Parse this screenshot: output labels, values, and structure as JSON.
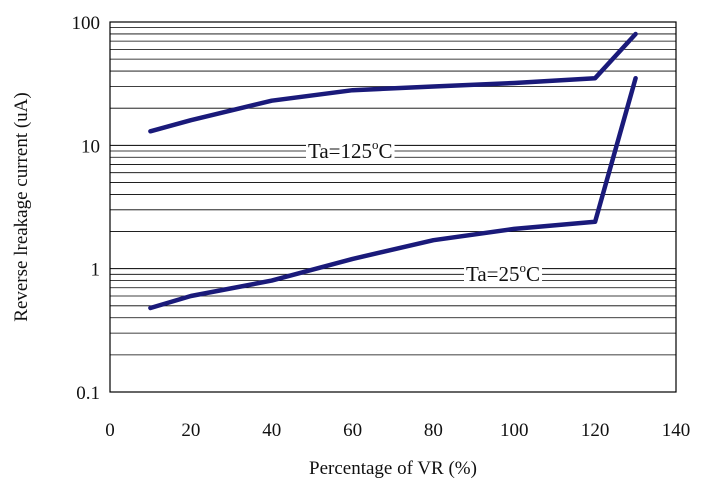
{
  "chart_data": {
    "type": "line",
    "title": "",
    "xlabel": "Percentage of VR (%)",
    "ylabel": "Reverse lreakage current (uA)",
    "xlim": [
      0,
      140
    ],
    "ylim": [
      0.1,
      100
    ],
    "yscale": "log",
    "grid": "horizontal log minor gridlines",
    "xticks": [
      "0",
      "20",
      "40",
      "60",
      "80",
      "100",
      "120",
      "140"
    ],
    "yticks": [
      "0.1",
      "1",
      "10",
      "100"
    ],
    "series": [
      {
        "name": "Ta=125°C",
        "x": [
          10,
          20,
          40,
          60,
          80,
          100,
          120,
          130
        ],
        "y": [
          13,
          16,
          23,
          28,
          30,
          32,
          35,
          80
        ]
      },
      {
        "name": "Ta=25°C",
        "x": [
          10,
          20,
          40,
          60,
          80,
          100,
          120,
          130
        ],
        "y": [
          0.48,
          0.6,
          0.8,
          1.2,
          1.7,
          2.1,
          2.4,
          35
        ]
      }
    ],
    "annotations": [
      {
        "series": "Ta=125°C",
        "prefix": "Ta=125",
        "sup": "o",
        "suffix": "C"
      },
      {
        "series": "Ta=25°C",
        "prefix": "Ta=25",
        "sup": "o",
        "suffix": "C"
      }
    ],
    "colors": {
      "line": "#1a1a7a",
      "axis": "#000000",
      "grid": "#000000"
    }
  }
}
